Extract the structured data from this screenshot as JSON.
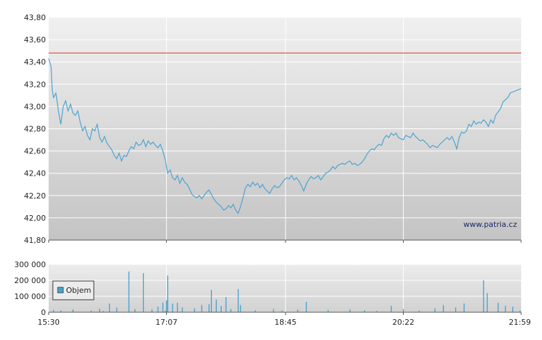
{
  "watermark": "www.patria.cz",
  "chart_data": [
    {
      "type": "line",
      "series": [
        {
          "color": "#4aa3d0",
          "points": [
            [
              "15:30",
              43.43
            ],
            [
              "15:32",
              43.36
            ],
            [
              "15:33",
              43.15
            ],
            [
              "15:34",
              43.08
            ],
            [
              "15:36",
              43.12
            ],
            [
              "15:38",
              42.96
            ],
            [
              "15:40",
              42.84
            ],
            [
              "15:42",
              43.0
            ],
            [
              "15:44",
              43.05
            ],
            [
              "15:46",
              42.96
            ],
            [
              "15:48",
              43.02
            ],
            [
              "15:50",
              42.94
            ],
            [
              "15:52",
              42.92
            ],
            [
              "15:54",
              42.96
            ],
            [
              "15:56",
              42.86
            ],
            [
              "15:58",
              42.78
            ],
            [
              "16:00",
              42.82
            ],
            [
              "16:02",
              42.74
            ],
            [
              "16:04",
              42.7
            ],
            [
              "16:06",
              42.8
            ],
            [
              "16:08",
              42.78
            ],
            [
              "16:10",
              42.84
            ],
            [
              "16:12",
              42.72
            ],
            [
              "16:14",
              42.68
            ],
            [
              "16:16",
              42.73
            ],
            [
              "16:18",
              42.67
            ],
            [
              "16:20",
              42.64
            ],
            [
              "16:22",
              42.61
            ],
            [
              "16:24",
              42.56
            ],
            [
              "16:26",
              42.53
            ],
            [
              "16:28",
              42.58
            ],
            [
              "16:30",
              42.51
            ],
            [
              "16:32",
              42.56
            ],
            [
              "16:34",
              42.55
            ],
            [
              "16:36",
              42.6
            ],
            [
              "16:38",
              42.64
            ],
            [
              "16:40",
              42.62
            ],
            [
              "16:42",
              42.68
            ],
            [
              "16:44",
              42.65
            ],
            [
              "16:46",
              42.66
            ],
            [
              "16:48",
              42.7
            ],
            [
              "16:50",
              42.64
            ],
            [
              "16:52",
              42.69
            ],
            [
              "16:54",
              42.66
            ],
            [
              "16:56",
              42.68
            ],
            [
              "16:58",
              42.65
            ],
            [
              "17:00",
              42.63
            ],
            [
              "17:02",
              42.66
            ],
            [
              "17:04",
              42.6
            ],
            [
              "17:06",
              42.52
            ],
            [
              "17:07",
              42.46
            ],
            [
              "17:08",
              42.4
            ],
            [
              "17:10",
              42.43
            ],
            [
              "17:12",
              42.36
            ],
            [
              "17:14",
              42.34
            ],
            [
              "17:16",
              42.38
            ],
            [
              "17:18",
              42.31
            ],
            [
              "17:20",
              42.36
            ],
            [
              "17:22",
              42.32
            ],
            [
              "17:24",
              42.3
            ],
            [
              "17:26",
              42.26
            ],
            [
              "17:28",
              42.21
            ],
            [
              "17:30",
              42.19
            ],
            [
              "17:32",
              42.18
            ],
            [
              "17:34",
              42.2
            ],
            [
              "17:36",
              42.17
            ],
            [
              "17:38",
              42.2
            ],
            [
              "17:40",
              42.23
            ],
            [
              "17:42",
              42.25
            ],
            [
              "17:44",
              42.21
            ],
            [
              "17:46",
              42.17
            ],
            [
              "17:48",
              42.14
            ],
            [
              "17:50",
              42.12
            ],
            [
              "17:52",
              42.1
            ],
            [
              "17:54",
              42.07
            ],
            [
              "17:56",
              42.08
            ],
            [
              "17:58",
              42.11
            ],
            [
              "18:00",
              42.09
            ],
            [
              "18:02",
              42.12
            ],
            [
              "18:04",
              42.07
            ],
            [
              "18:06",
              42.04
            ],
            [
              "18:08",
              42.1
            ],
            [
              "18:10",
              42.18
            ],
            [
              "18:12",
              42.27
            ],
            [
              "18:14",
              42.3
            ],
            [
              "18:16",
              42.28
            ],
            [
              "18:18",
              42.32
            ],
            [
              "18:20",
              42.29
            ],
            [
              "18:22",
              42.31
            ],
            [
              "18:24",
              42.27
            ],
            [
              "18:26",
              42.3
            ],
            [
              "18:28",
              42.26
            ],
            [
              "18:30",
              42.24
            ],
            [
              "18:32",
              42.22
            ],
            [
              "18:34",
              42.26
            ],
            [
              "18:36",
              42.29
            ],
            [
              "18:38",
              42.27
            ],
            [
              "18:40",
              42.28
            ],
            [
              "18:42",
              42.31
            ],
            [
              "18:44",
              42.34
            ],
            [
              "18:46",
              42.36
            ],
            [
              "18:48",
              42.35
            ],
            [
              "18:50",
              42.38
            ],
            [
              "18:52",
              42.34
            ],
            [
              "18:54",
              42.36
            ],
            [
              "18:56",
              42.33
            ],
            [
              "18:58",
              42.29
            ],
            [
              "19:00",
              42.24
            ],
            [
              "19:02",
              42.3
            ],
            [
              "19:04",
              42.34
            ],
            [
              "19:06",
              42.37
            ],
            [
              "19:08",
              42.35
            ],
            [
              "19:10",
              42.36
            ],
            [
              "19:12",
              42.38
            ],
            [
              "19:14",
              42.34
            ],
            [
              "19:16",
              42.37
            ],
            [
              "19:18",
              42.4
            ],
            [
              "19:20",
              42.41
            ],
            [
              "19:22",
              42.43
            ],
            [
              "19:24",
              42.46
            ],
            [
              "19:26",
              42.44
            ],
            [
              "19:28",
              42.47
            ],
            [
              "19:30",
              42.48
            ],
            [
              "19:32",
              42.49
            ],
            [
              "19:34",
              42.48
            ],
            [
              "19:36",
              42.5
            ],
            [
              "19:38",
              42.51
            ],
            [
              "19:40",
              42.48
            ],
            [
              "19:42",
              42.49
            ],
            [
              "19:44",
              42.47
            ],
            [
              "19:46",
              42.48
            ],
            [
              "19:48",
              42.5
            ],
            [
              "19:50",
              42.53
            ],
            [
              "19:52",
              42.57
            ],
            [
              "19:54",
              42.6
            ],
            [
              "19:56",
              42.62
            ],
            [
              "19:58",
              42.61
            ],
            [
              "20:00",
              42.64
            ],
            [
              "20:02",
              42.66
            ],
            [
              "20:04",
              42.65
            ],
            [
              "20:06",
              42.71
            ],
            [
              "20:08",
              42.74
            ],
            [
              "20:10",
              42.72
            ],
            [
              "20:12",
              42.76
            ],
            [
              "20:14",
              42.74
            ],
            [
              "20:16",
              42.76
            ],
            [
              "20:18",
              42.72
            ],
            [
              "20:20",
              42.71
            ],
            [
              "20:22",
              42.7
            ],
            [
              "20:24",
              42.74
            ],
            [
              "20:26",
              42.73
            ],
            [
              "20:28",
              42.72
            ],
            [
              "20:30",
              42.76
            ],
            [
              "20:32",
              42.73
            ],
            [
              "20:34",
              42.71
            ],
            [
              "20:36",
              42.69
            ],
            [
              "20:38",
              42.7
            ],
            [
              "20:40",
              42.68
            ],
            [
              "20:42",
              42.66
            ],
            [
              "20:44",
              42.63
            ],
            [
              "20:46",
              42.65
            ],
            [
              "20:48",
              42.64
            ],
            [
              "20:50",
              42.63
            ],
            [
              "20:52",
              42.66
            ],
            [
              "20:54",
              42.68
            ],
            [
              "20:56",
              42.7
            ],
            [
              "20:58",
              42.72
            ],
            [
              "21:00",
              42.7
            ],
            [
              "21:02",
              42.73
            ],
            [
              "21:04",
              42.68
            ],
            [
              "21:06",
              42.62
            ],
            [
              "21:08",
              42.72
            ],
            [
              "21:10",
              42.77
            ],
            [
              "21:12",
              42.76
            ],
            [
              "21:14",
              42.78
            ],
            [
              "21:16",
              42.84
            ],
            [
              "21:18",
              42.82
            ],
            [
              "21:20",
              42.87
            ],
            [
              "21:22",
              42.84
            ],
            [
              "21:24",
              42.86
            ],
            [
              "21:26",
              42.85
            ],
            [
              "21:28",
              42.88
            ],
            [
              "21:30",
              42.86
            ],
            [
              "21:32",
              42.82
            ],
            [
              "21:34",
              42.88
            ],
            [
              "21:36",
              42.85
            ],
            [
              "21:38",
              42.92
            ],
            [
              "21:40",
              42.95
            ],
            [
              "21:42",
              42.98
            ],
            [
              "21:44",
              43.04
            ],
            [
              "21:46",
              43.06
            ],
            [
              "21:48",
              43.08
            ],
            [
              "21:50",
              43.12
            ],
            [
              "21:52",
              43.13
            ],
            [
              "21:59",
              43.16
            ]
          ]
        }
      ],
      "reference_line": {
        "value": 43.48,
        "color": "#dd3322"
      },
      "x_range": [
        "15:30",
        "21:59"
      ],
      "x_ticks": [
        "15:30",
        "17:07",
        "18:45",
        "20:22",
        "21:59"
      ],
      "ylim": [
        41.8,
        43.8
      ],
      "y_ticks": [
        41.8,
        42.0,
        42.2,
        42.4,
        42.6,
        42.8,
        43.0,
        43.2,
        43.4,
        43.6,
        43.8
      ],
      "y_tick_labels": [
        "41,80",
        "42,00",
        "42,20",
        "42,40",
        "42,60",
        "42,80",
        "43,00",
        "43,20",
        "43,40",
        "43,60",
        "43,80"
      ],
      "grid": true
    },
    {
      "type": "bar",
      "series": [
        {
          "name": "Objem",
          "color": "#4aa3d0",
          "points": [
            [
              "15:34",
              15000
            ],
            [
              "15:40",
              12000
            ],
            [
              "15:50",
              18000
            ],
            [
              "16:05",
              10000
            ],
            [
              "16:12",
              22000
            ],
            [
              "16:15",
              8000
            ],
            [
              "16:20",
              55000
            ],
            [
              "16:26",
              30000
            ],
            [
              "16:36",
              255000
            ],
            [
              "16:41",
              20000
            ],
            [
              "16:48",
              245000
            ],
            [
              "16:55",
              18000
            ],
            [
              "17:00",
              35000
            ],
            [
              "17:04",
              60000
            ],
            [
              "17:06",
              10000
            ],
            [
              "17:07",
              75000
            ],
            [
              "17:08",
              230000
            ],
            [
              "17:12",
              55000
            ],
            [
              "17:16",
              60000
            ],
            [
              "17:20",
              30000
            ],
            [
              "17:30",
              25000
            ],
            [
              "17:36",
              45000
            ],
            [
              "17:42",
              50000
            ],
            [
              "17:44",
              140000
            ],
            [
              "17:48",
              80000
            ],
            [
              "17:52",
              40000
            ],
            [
              "17:56",
              95000
            ],
            [
              "18:00",
              20000
            ],
            [
              "18:06",
              145000
            ],
            [
              "18:08",
              45000
            ],
            [
              "18:20",
              12000
            ],
            [
              "18:35",
              20000
            ],
            [
              "18:42",
              10000
            ],
            [
              "18:55",
              18000
            ],
            [
              "19:02",
              65000
            ],
            [
              "19:20",
              15000
            ],
            [
              "19:38",
              18000
            ],
            [
              "19:50",
              12000
            ],
            [
              "20:00",
              8000
            ],
            [
              "20:12",
              40000
            ],
            [
              "20:22",
              20000
            ],
            [
              "20:35",
              10000
            ],
            [
              "20:48",
              25000
            ],
            [
              "20:55",
              45000
            ],
            [
              "21:05",
              30000
            ],
            [
              "21:12",
              55000
            ],
            [
              "21:28",
              200000
            ],
            [
              "21:31",
              120000
            ],
            [
              "21:40",
              60000
            ],
            [
              "21:46",
              40000
            ],
            [
              "21:52",
              35000
            ],
            [
              "21:58",
              10000
            ]
          ]
        }
      ],
      "x_range": [
        "15:30",
        "21:59"
      ],
      "ylim": [
        0,
        300000
      ],
      "y_ticks": [
        0,
        100000,
        200000,
        300000
      ],
      "y_tick_labels": [
        "0",
        "100 000",
        "200 000",
        "300 000"
      ],
      "x_ticks": [
        "15:30",
        "17:07",
        "18:45",
        "20:22",
        "21:59"
      ],
      "legend": "left"
    }
  ]
}
